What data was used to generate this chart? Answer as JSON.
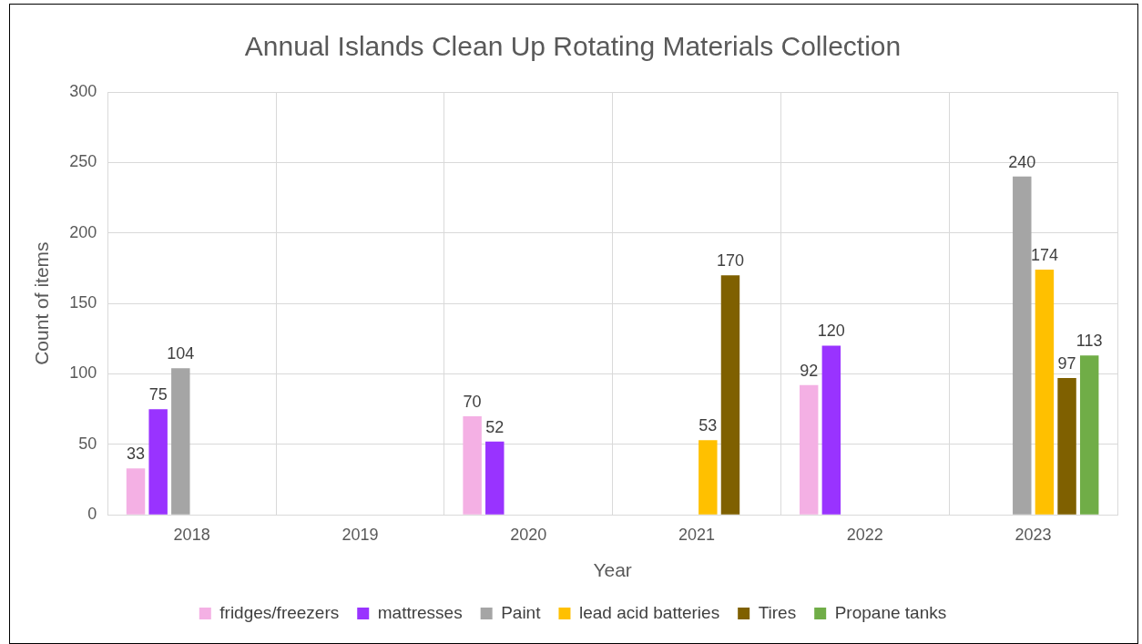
{
  "chart_data": {
    "type": "bar",
    "title": "Annual Islands Clean Up Rotating Materials Collection",
    "xlabel": "Year",
    "ylabel": "Count of items",
    "categories": [
      "2018",
      "2019",
      "2020",
      "2021",
      "2022",
      "2023"
    ],
    "series": [
      {
        "name": "fridges/freezers",
        "color": "#f4b0e4",
        "values": [
          33,
          null,
          70,
          null,
          92,
          null
        ]
      },
      {
        "name": "mattresses",
        "color": "#9933ff",
        "values": [
          75,
          null,
          52,
          null,
          120,
          null
        ]
      },
      {
        "name": "Paint",
        "color": "#a5a5a5",
        "values": [
          104,
          null,
          null,
          null,
          null,
          240
        ]
      },
      {
        "name": "lead acid batteries",
        "color": "#ffc000",
        "values": [
          null,
          null,
          null,
          53,
          null,
          174
        ]
      },
      {
        "name": "Tires",
        "color": "#7f6000",
        "values": [
          null,
          null,
          null,
          170,
          null,
          97
        ]
      },
      {
        "name": "Propane tanks",
        "color": "#70ad47",
        "values": [
          null,
          null,
          null,
          null,
          null,
          113
        ]
      }
    ],
    "ylim": [
      0,
      300
    ],
    "yticks": [
      0,
      50,
      100,
      150,
      200,
      250,
      300
    ],
    "grid": true,
    "legend": "bottom",
    "data_labels": true
  }
}
